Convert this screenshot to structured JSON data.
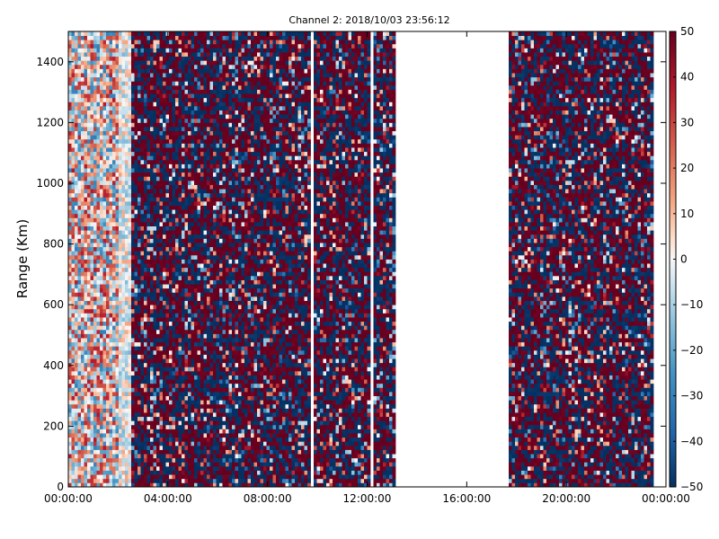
{
  "chart_data": {
    "type": "heatmap",
    "title": "Channel 2: 2018/10/03 23:56:12",
    "xlabel": "",
    "ylabel": "Range (Km)",
    "x_tick_labels": [
      "00:00:00",
      "04:00:00",
      "08:00:00",
      "12:00:00",
      "16:00:00",
      "20:00:00",
      "00:00:00"
    ],
    "x_ticks_hours": [
      0,
      4,
      8,
      12,
      16,
      20,
      24
    ],
    "xlim_hours": [
      0,
      24
    ],
    "y_ticks": [
      0,
      200,
      400,
      600,
      800,
      1000,
      1200,
      1400
    ],
    "ylim": [
      0,
      1500
    ],
    "colorbar": {
      "colormap": "RdBu_r",
      "vmin": -50,
      "vmax": 50,
      "ticks": [
        -50,
        -40,
        -30,
        -20,
        -10,
        0,
        10,
        20,
        30,
        40,
        50
      ]
    },
    "data_gaps_hours": [
      [
        9.75,
        9.87
      ],
      [
        12.08,
        12.25
      ],
      [
        13.15,
        17.65
      ]
    ],
    "grid": false
  }
}
